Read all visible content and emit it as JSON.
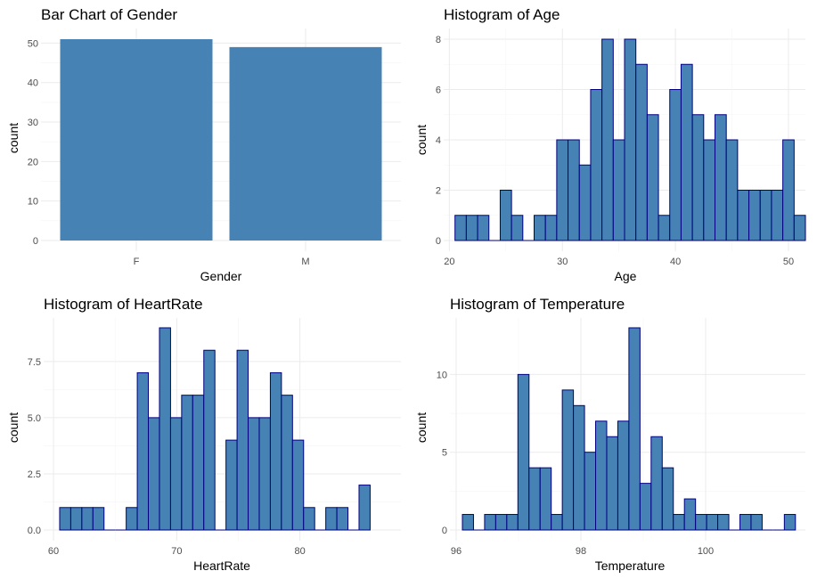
{
  "colors": {
    "bar_fill": "#4682B4",
    "bar_outline": "#000080",
    "grid": "#EBEBEB",
    "tick_text": "#4D4D4D"
  },
  "chart_data": [
    {
      "type": "bar",
      "title": "Bar Chart of Gender",
      "xlabel": "Gender",
      "ylabel": "count",
      "categories": [
        "F",
        "M"
      ],
      "values": [
        51,
        49
      ],
      "ylim": [
        0,
        51
      ],
      "yticks": [
        0,
        10,
        20,
        30,
        40,
        50
      ],
      "grid": true
    },
    {
      "type": "bar",
      "title": "Histogram of Age",
      "xlabel": "Age",
      "ylabel": "count",
      "bin_start": 20.5,
      "bin_width": 1,
      "values": [
        1,
        1,
        1,
        0,
        2,
        1,
        0,
        1,
        1,
        4,
        4,
        3,
        6,
        8,
        4,
        8,
        7,
        5,
        1,
        6,
        7,
        5,
        4,
        5,
        4,
        2,
        2,
        2,
        2,
        4,
        1
      ],
      "xlim": [
        19.5,
        51.5
      ],
      "ylim": [
        0,
        8
      ],
      "xticks": [
        20,
        30,
        40,
        50
      ],
      "yticks": [
        0,
        2,
        4,
        6,
        8
      ],
      "grid": true
    },
    {
      "type": "bar",
      "title": "Histogram of HeartRate",
      "xlabel": "HeartRate",
      "ylabel": "count",
      "bin_start": 60.5,
      "bin_width": 0.9,
      "values": [
        1,
        1,
        1,
        1,
        0,
        0,
        1,
        7,
        5,
        9,
        5,
        6,
        6,
        8,
        0,
        4,
        8,
        5,
        5,
        7,
        6,
        4,
        1,
        0,
        1,
        1,
        0,
        2
      ],
      "xlim": [
        59.2,
        88.2
      ],
      "ylim": [
        0,
        9
      ],
      "xticks": [
        60,
        70,
        80
      ],
      "yticks": [
        0,
        2.5,
        5,
        7.5
      ],
      "ytick_labels": [
        "0.0",
        "2.5",
        "5.0",
        "7.5"
      ],
      "grid": true
    },
    {
      "type": "bar",
      "title": "Histogram of Temperature",
      "xlabel": "Temperature",
      "ylabel": "count",
      "bin_start": 96.1,
      "bin_width": 0.178,
      "values": [
        1,
        0,
        1,
        1,
        1,
        10,
        4,
        4,
        1,
        9,
        8,
        5,
        7,
        6,
        7,
        13,
        3,
        6,
        4,
        1,
        2,
        1,
        1,
        1,
        0,
        1,
        1,
        0,
        0,
        1
      ],
      "xlim": [
        95.9,
        101.6
      ],
      "ylim": [
        0,
        13
      ],
      "xticks": [
        96,
        98,
        100
      ],
      "yticks": [
        0,
        5,
        10
      ],
      "grid": true
    }
  ]
}
